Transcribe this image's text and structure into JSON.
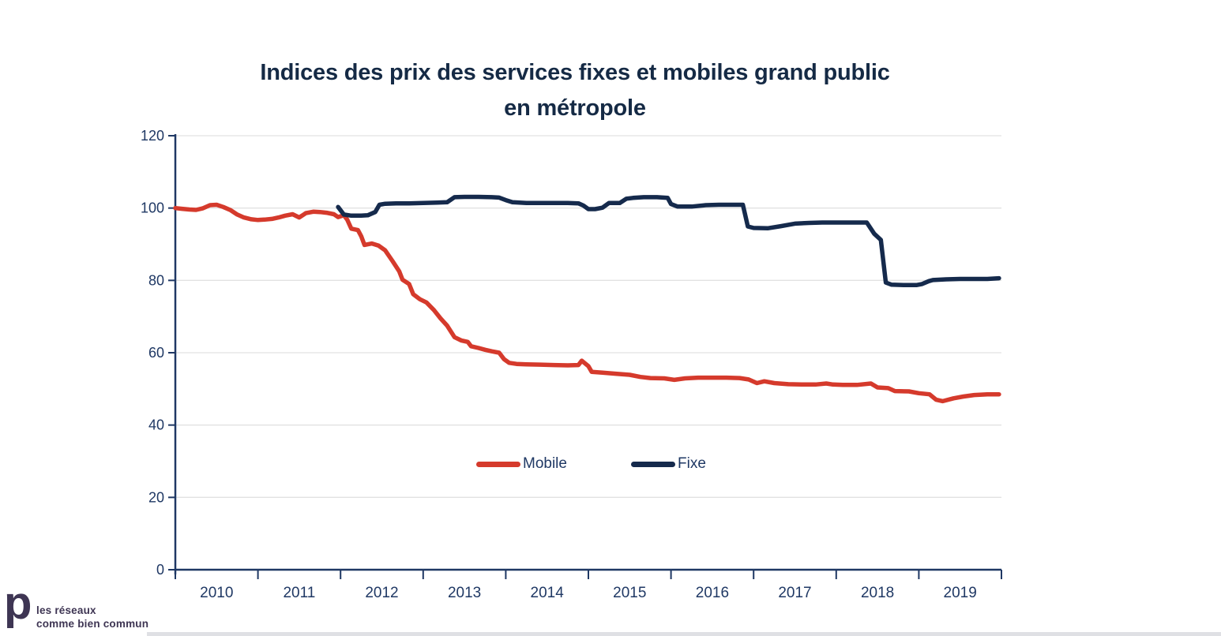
{
  "title": {
    "line1": "Indices des prix des services fixes et mobiles grand public",
    "line2": "en métropole"
  },
  "legend": {
    "mobile_label": "Mobile",
    "fixe_label": "Fixe"
  },
  "logo": {
    "mark": "p",
    "line1": "les réseaux",
    "line2": "comme bien commun"
  },
  "colors": {
    "mobile": "#d53a2c",
    "fixe": "#152a4c",
    "axis": "#1f3864",
    "grid": "#e2e2e2",
    "title": "#152a45",
    "logo": "#3e3553"
  },
  "chart_data": {
    "type": "line",
    "title": "Indices des prix des services fixes et mobiles grand public en métropole",
    "xlabel": "",
    "ylabel": "",
    "x_axis": {
      "range": [
        2010,
        2020
      ],
      "year_labels": [
        "2010",
        "2011",
        "2012",
        "2013",
        "2014",
        "2015",
        "2016",
        "2017",
        "2018",
        "2019"
      ]
    },
    "y_axis": {
      "range": [
        0,
        120
      ],
      "ticks": [
        0,
        20,
        40,
        60,
        80,
        100,
        120
      ]
    },
    "grid": true,
    "legend_position": "center-inside",
    "series": [
      {
        "name": "Mobile",
        "color": "#d53a2c",
        "points": [
          [
            2010.0,
            100.0
          ],
          [
            2010.08,
            99.8
          ],
          [
            2010.17,
            99.6
          ],
          [
            2010.25,
            99.5
          ],
          [
            2010.33,
            99.9
          ],
          [
            2010.42,
            100.8
          ],
          [
            2010.5,
            100.9
          ],
          [
            2010.58,
            100.3
          ],
          [
            2010.67,
            99.4
          ],
          [
            2010.75,
            98.2
          ],
          [
            2010.83,
            97.4
          ],
          [
            2010.92,
            96.9
          ],
          [
            2011.0,
            96.7
          ],
          [
            2011.08,
            96.8
          ],
          [
            2011.17,
            97.0
          ],
          [
            2011.25,
            97.4
          ],
          [
            2011.33,
            97.9
          ],
          [
            2011.42,
            98.3
          ],
          [
            2011.5,
            97.4
          ],
          [
            2011.58,
            98.6
          ],
          [
            2011.67,
            99.0
          ],
          [
            2011.75,
            98.9
          ],
          [
            2011.83,
            98.7
          ],
          [
            2011.92,
            98.3
          ],
          [
            2011.97,
            97.5
          ],
          [
            2012.04,
            98.0
          ],
          [
            2012.08,
            96.8
          ],
          [
            2012.13,
            94.3
          ],
          [
            2012.21,
            93.9
          ],
          [
            2012.25,
            92.2
          ],
          [
            2012.29,
            89.8
          ],
          [
            2012.38,
            90.2
          ],
          [
            2012.46,
            89.6
          ],
          [
            2012.54,
            88.3
          ],
          [
            2012.63,
            85.3
          ],
          [
            2012.71,
            82.5
          ],
          [
            2012.75,
            80.2
          ],
          [
            2012.83,
            79.0
          ],
          [
            2012.88,
            76.2
          ],
          [
            2012.96,
            74.8
          ],
          [
            2013.04,
            73.9
          ],
          [
            2013.13,
            71.8
          ],
          [
            2013.21,
            69.5
          ],
          [
            2013.29,
            67.5
          ],
          [
            2013.38,
            64.3
          ],
          [
            2013.46,
            63.4
          ],
          [
            2013.54,
            63.0
          ],
          [
            2013.58,
            61.8
          ],
          [
            2013.67,
            61.3
          ],
          [
            2013.75,
            60.8
          ],
          [
            2013.83,
            60.4
          ],
          [
            2013.92,
            60.0
          ],
          [
            2013.98,
            58.2
          ],
          [
            2014.04,
            57.2
          ],
          [
            2014.13,
            56.9
          ],
          [
            2014.25,
            56.8
          ],
          [
            2014.42,
            56.7
          ],
          [
            2014.58,
            56.6
          ],
          [
            2014.75,
            56.5
          ],
          [
            2014.88,
            56.6
          ],
          [
            2014.92,
            57.8
          ],
          [
            2015.0,
            56.3
          ],
          [
            2015.04,
            54.7
          ],
          [
            2015.17,
            54.5
          ],
          [
            2015.33,
            54.2
          ],
          [
            2015.5,
            53.9
          ],
          [
            2015.63,
            53.3
          ],
          [
            2015.75,
            53.0
          ],
          [
            2015.92,
            52.9
          ],
          [
            2016.04,
            52.5
          ],
          [
            2016.17,
            52.9
          ],
          [
            2016.33,
            53.1
          ],
          [
            2016.5,
            53.1
          ],
          [
            2016.67,
            53.1
          ],
          [
            2016.83,
            53.0
          ],
          [
            2016.94,
            52.6
          ],
          [
            2017.04,
            51.6
          ],
          [
            2017.13,
            52.1
          ],
          [
            2017.25,
            51.6
          ],
          [
            2017.42,
            51.3
          ],
          [
            2017.58,
            51.2
          ],
          [
            2017.75,
            51.2
          ],
          [
            2017.88,
            51.5
          ],
          [
            2017.96,
            51.2
          ],
          [
            2018.08,
            51.1
          ],
          [
            2018.25,
            51.1
          ],
          [
            2018.42,
            51.5
          ],
          [
            2018.5,
            50.4
          ],
          [
            2018.63,
            50.2
          ],
          [
            2018.71,
            49.4
          ],
          [
            2018.88,
            49.3
          ],
          [
            2019.0,
            48.8
          ],
          [
            2019.13,
            48.5
          ],
          [
            2019.21,
            47.0
          ],
          [
            2019.29,
            46.6
          ],
          [
            2019.42,
            47.4
          ],
          [
            2019.54,
            47.9
          ],
          [
            2019.67,
            48.3
          ],
          [
            2019.83,
            48.5
          ],
          [
            2019.97,
            48.5
          ]
        ]
      },
      {
        "name": "Fixe",
        "color": "#152a4c",
        "points": [
          [
            2011.97,
            100.3
          ],
          [
            2012.04,
            98.2
          ],
          [
            2012.13,
            97.9
          ],
          [
            2012.25,
            97.9
          ],
          [
            2012.33,
            98.0
          ],
          [
            2012.42,
            98.9
          ],
          [
            2012.47,
            100.9
          ],
          [
            2012.54,
            101.2
          ],
          [
            2012.67,
            101.3
          ],
          [
            2012.83,
            101.3
          ],
          [
            2013.0,
            101.4
          ],
          [
            2013.17,
            101.5
          ],
          [
            2013.29,
            101.6
          ],
          [
            2013.38,
            103.0
          ],
          [
            2013.5,
            103.1
          ],
          [
            2013.67,
            103.1
          ],
          [
            2013.83,
            103.0
          ],
          [
            2013.92,
            102.9
          ],
          [
            2014.0,
            102.2
          ],
          [
            2014.08,
            101.6
          ],
          [
            2014.25,
            101.4
          ],
          [
            2014.42,
            101.4
          ],
          [
            2014.58,
            101.4
          ],
          [
            2014.75,
            101.4
          ],
          [
            2014.88,
            101.3
          ],
          [
            2014.94,
            100.7
          ],
          [
            2015.0,
            99.7
          ],
          [
            2015.08,
            99.7
          ],
          [
            2015.17,
            100.1
          ],
          [
            2015.25,
            101.4
          ],
          [
            2015.38,
            101.4
          ],
          [
            2015.46,
            102.6
          ],
          [
            2015.54,
            102.8
          ],
          [
            2015.67,
            103.0
          ],
          [
            2015.83,
            103.0
          ],
          [
            2015.96,
            102.8
          ],
          [
            2016.0,
            101.1
          ],
          [
            2016.08,
            100.4
          ],
          [
            2016.25,
            100.4
          ],
          [
            2016.42,
            100.8
          ],
          [
            2016.58,
            100.9
          ],
          [
            2016.75,
            100.9
          ],
          [
            2016.87,
            100.9
          ],
          [
            2016.93,
            94.9
          ],
          [
            2017.0,
            94.5
          ],
          [
            2017.17,
            94.4
          ],
          [
            2017.33,
            95.0
          ],
          [
            2017.5,
            95.7
          ],
          [
            2017.67,
            95.9
          ],
          [
            2017.83,
            96.0
          ],
          [
            2018.0,
            96.0
          ],
          [
            2018.17,
            96.0
          ],
          [
            2018.37,
            96.0
          ],
          [
            2018.46,
            92.9
          ],
          [
            2018.54,
            91.2
          ],
          [
            2018.6,
            79.4
          ],
          [
            2018.67,
            78.8
          ],
          [
            2018.83,
            78.7
          ],
          [
            2018.97,
            78.7
          ],
          [
            2019.04,
            79.0
          ],
          [
            2019.12,
            79.8
          ],
          [
            2019.17,
            80.1
          ],
          [
            2019.33,
            80.3
          ],
          [
            2019.5,
            80.4
          ],
          [
            2019.67,
            80.4
          ],
          [
            2019.83,
            80.4
          ],
          [
            2019.97,
            80.6
          ]
        ]
      }
    ]
  }
}
